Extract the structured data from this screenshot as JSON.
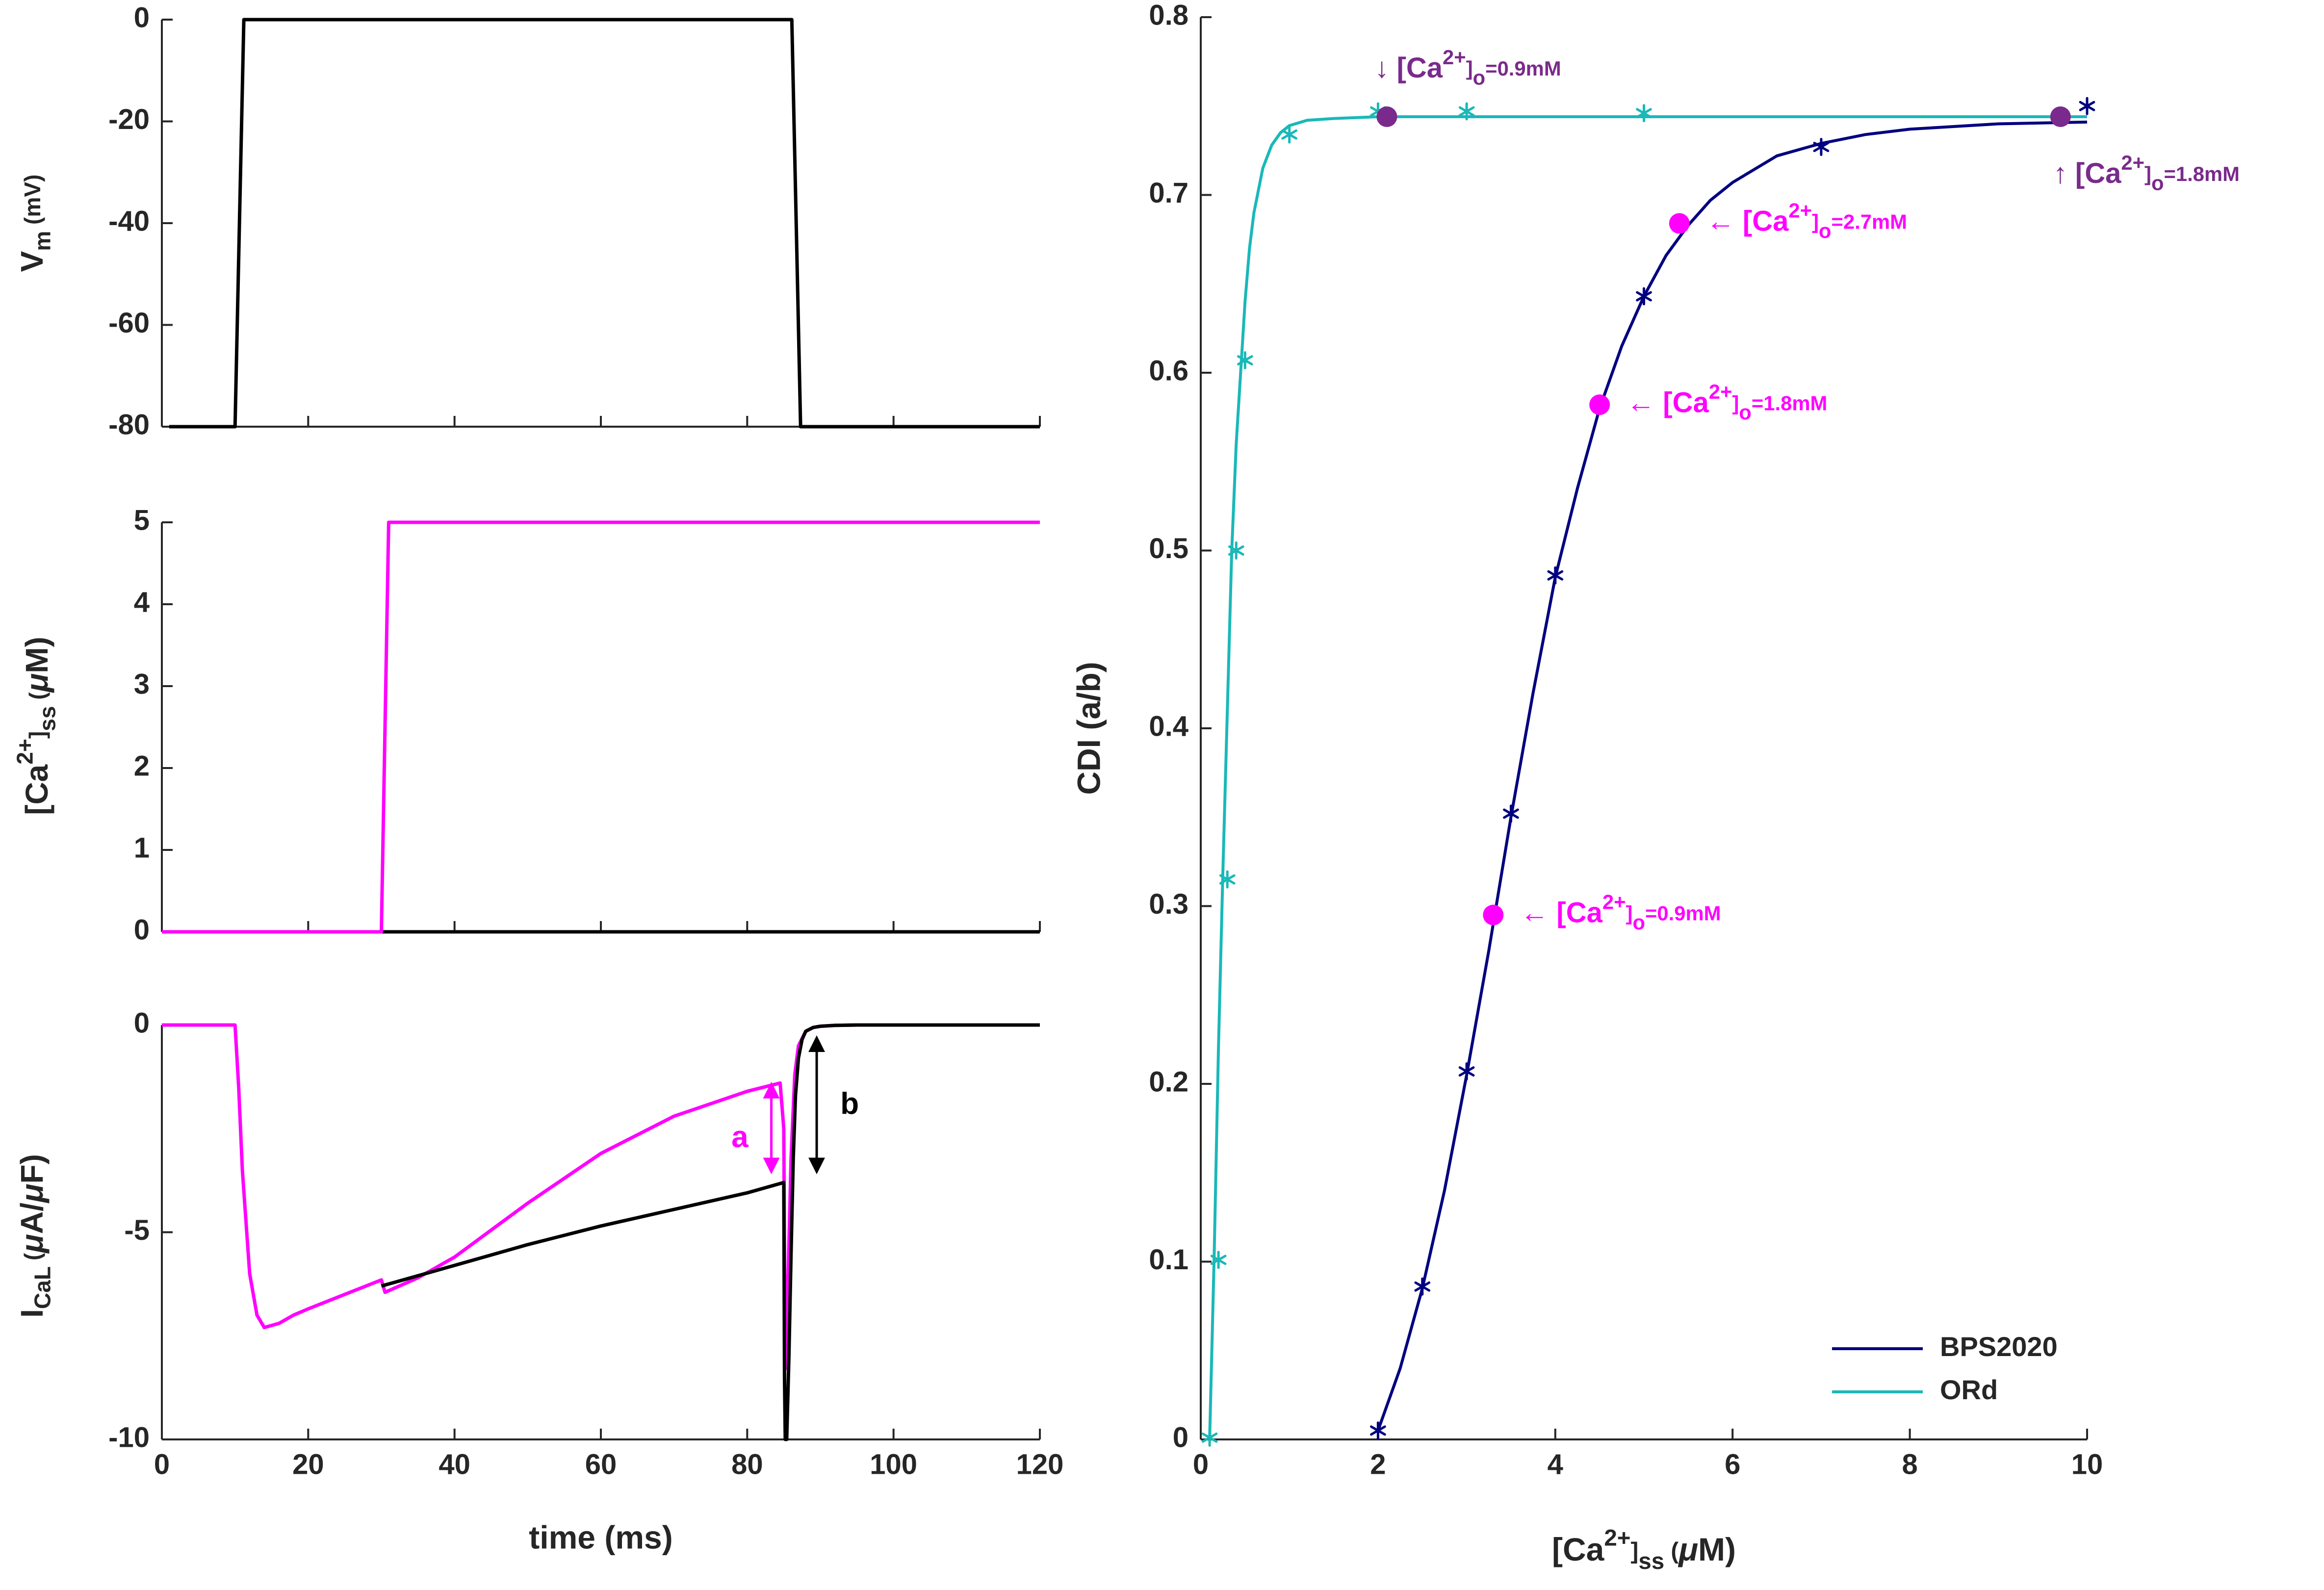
{
  "colors": {
    "black": "#000000",
    "magenta": "#ff00ff",
    "navy": "#000080",
    "teal": "#1ab8b8",
    "purple": "#7a2a8c",
    "axis": "#262626"
  },
  "chart_data": [
    {
      "type": "line",
      "id": "vm",
      "ylabel": "V_m (mV)",
      "ylim": [
        -80,
        0
      ],
      "xlim": [
        0,
        120
      ],
      "yticks": [
        "0",
        "-20",
        "-40",
        "-60",
        "-80"
      ],
      "xtick_labels_shown": false,
      "series": [
        {
          "color": "black",
          "x": [
            1,
            10,
            11.2,
            86.1,
            87.3,
            120
          ],
          "y": [
            -80,
            -80,
            0,
            0,
            -80,
            -80
          ]
        }
      ]
    },
    {
      "type": "line",
      "id": "cass",
      "ylabel": "[Ca2+]ss (μM)",
      "ylim": [
        0,
        5
      ],
      "xlim": [
        0,
        120
      ],
      "yticks": [
        "5",
        "4",
        "3",
        "2",
        "1",
        "0"
      ],
      "xtick_labels_shown": false,
      "series": [
        {
          "color": "black",
          "x": [
            0,
            120
          ],
          "y": [
            0,
            0
          ]
        },
        {
          "color": "magenta",
          "x": [
            0,
            30,
            31,
            120
          ],
          "y": [
            0,
            0,
            5,
            5
          ]
        }
      ]
    },
    {
      "type": "line",
      "id": "ical",
      "ylabel": "I_CaL (μA/μF)",
      "xlabel": "time (ms)",
      "ylim": [
        -10,
        0
      ],
      "xlim": [
        0,
        120
      ],
      "yticks": [
        "0",
        "-5",
        "-10"
      ],
      "xticks": [
        "0",
        "20",
        "40",
        "60",
        "80",
        "100",
        "120"
      ],
      "series": [
        {
          "color": "black",
          "x": [
            30,
            40,
            50,
            60,
            70,
            80,
            85,
            85.1,
            85.2,
            85.4,
            85.7,
            86.0,
            86.3,
            86.6,
            87,
            87.5,
            88,
            89,
            90,
            92,
            95,
            100,
            110,
            120
          ],
          "y": [
            -6.3,
            -5.8,
            -5.3,
            -4.85,
            -4.45,
            -4.05,
            -3.8,
            -8.5,
            -10,
            -10,
            -8,
            -5.5,
            -3.2,
            -1.7,
            -0.8,
            -0.35,
            -0.15,
            -0.06,
            -0.03,
            -0.01,
            0,
            0,
            0,
            0
          ]
        },
        {
          "color": "magenta",
          "x": [
            0,
            10,
            10.5,
            11,
            12,
            13,
            14,
            16,
            18,
            20,
            25,
            30,
            30.5,
            35,
            40,
            50,
            60,
            70,
            80,
            84.5,
            85,
            85.2,
            85.6,
            86,
            86.5,
            87,
            88,
            89,
            90,
            92,
            95,
            100,
            110,
            120
          ],
          "y": [
            0,
            0,
            -1.5,
            -3.5,
            -6,
            -7.0,
            -7.3,
            -7.2,
            -7.0,
            -6.85,
            -6.5,
            -6.15,
            -6.45,
            -6.1,
            -5.6,
            -4.3,
            -3.1,
            -2.2,
            -1.6,
            -1.4,
            -2.5,
            -8.3,
            -6,
            -3.2,
            -1.2,
            -0.5,
            -0.15,
            -0.06,
            -0.03,
            -0.01,
            0,
            0,
            0,
            0
          ]
        }
      ],
      "annotations": [
        {
          "text": "a",
          "color": "magenta"
        },
        {
          "text": "b",
          "color": "black"
        }
      ]
    },
    {
      "type": "line",
      "id": "cdi",
      "ylabel": "CDI (a/b)",
      "xlabel": "[Ca2+]ss (μM)",
      "xlim": [
        0,
        10
      ],
      "ylim": [
        0,
        0.8
      ],
      "xticks": [
        "0",
        "2",
        "4",
        "6",
        "8",
        "10"
      ],
      "yticks": [
        "0",
        "0.1",
        "0.2",
        "0.3",
        "0.4",
        "0.5",
        "0.6",
        "0.7",
        "0.8"
      ],
      "legend": {
        "placement": "bottom-right",
        "entries": [
          {
            "name": "BPS2020",
            "color": "navy"
          },
          {
            "name": "ORd",
            "color": "teal"
          }
        ]
      },
      "series": [
        {
          "name": "BPS2020",
          "color": "navy",
          "x": [
            2.0,
            2.25,
            2.5,
            2.75,
            3.0,
            3.25,
            3.5,
            3.75,
            4.0,
            4.25,
            4.5,
            4.75,
            5.0,
            5.25,
            5.5,
            5.75,
            6.0,
            6.5,
            7.0,
            7.5,
            8.0,
            9.0,
            10.0
          ],
          "y": [
            0.005,
            0.04,
            0.085,
            0.14,
            0.205,
            0.275,
            0.35,
            0.42,
            0.485,
            0.535,
            0.58,
            0.615,
            0.643,
            0.666,
            0.683,
            0.697,
            0.707,
            0.722,
            0.729,
            0.734,
            0.737,
            0.74,
            0.741
          ],
          "markers": {
            "x": [
              2,
              2.5,
              3,
              3.5,
              4,
              5,
              7,
              10
            ],
            "y": [
              0.005,
              0.086,
              0.207,
              0.352,
              0.486,
              0.643,
              0.727,
              0.75
            ]
          }
        },
        {
          "name": "ORd",
          "color": "teal",
          "x": [
            0.1,
            0.15,
            0.2,
            0.25,
            0.3,
            0.35,
            0.4,
            0.45,
            0.5,
            0.55,
            0.6,
            0.7,
            0.8,
            0.9,
            1.0,
            1.2,
            1.5,
            2,
            3,
            5,
            7,
            10
          ],
          "y": [
            0.0,
            0.1,
            0.22,
            0.32,
            0.41,
            0.5,
            0.56,
            0.6,
            0.64,
            0.67,
            0.69,
            0.715,
            0.728,
            0.735,
            0.739,
            0.742,
            0.743,
            0.744,
            0.744,
            0.744,
            0.744,
            0.744
          ],
          "markers": {
            "x": [
              0.1,
              0.2,
              0.3,
              0.4,
              0.5,
              1.0,
              2.0,
              3.0,
              5.0
            ],
            "y": [
              0.001,
              0.101,
              0.315,
              0.5,
              0.607,
              0.734,
              0.747,
              0.747,
              0.746
            ]
          }
        }
      ],
      "highlight_points": [
        {
          "x": 2.1,
          "y": 0.744,
          "color": "purple",
          "label": "↓ [Ca2+]o=0.9mM"
        },
        {
          "x": 9.7,
          "y": 0.744,
          "color": "purple",
          "label": "↑ [Ca2+]o=1.8mM"
        },
        {
          "x": 5.4,
          "y": 0.684,
          "color": "magenta",
          "label": "← [Ca2+]o=2.7mM"
        },
        {
          "x": 4.5,
          "y": 0.582,
          "color": "magenta",
          "label": "← [Ca2+]o=1.8mM"
        },
        {
          "x": 3.3,
          "y": 0.295,
          "color": "magenta",
          "label": "← [Ca2+]o=0.9mM"
        }
      ]
    }
  ]
}
